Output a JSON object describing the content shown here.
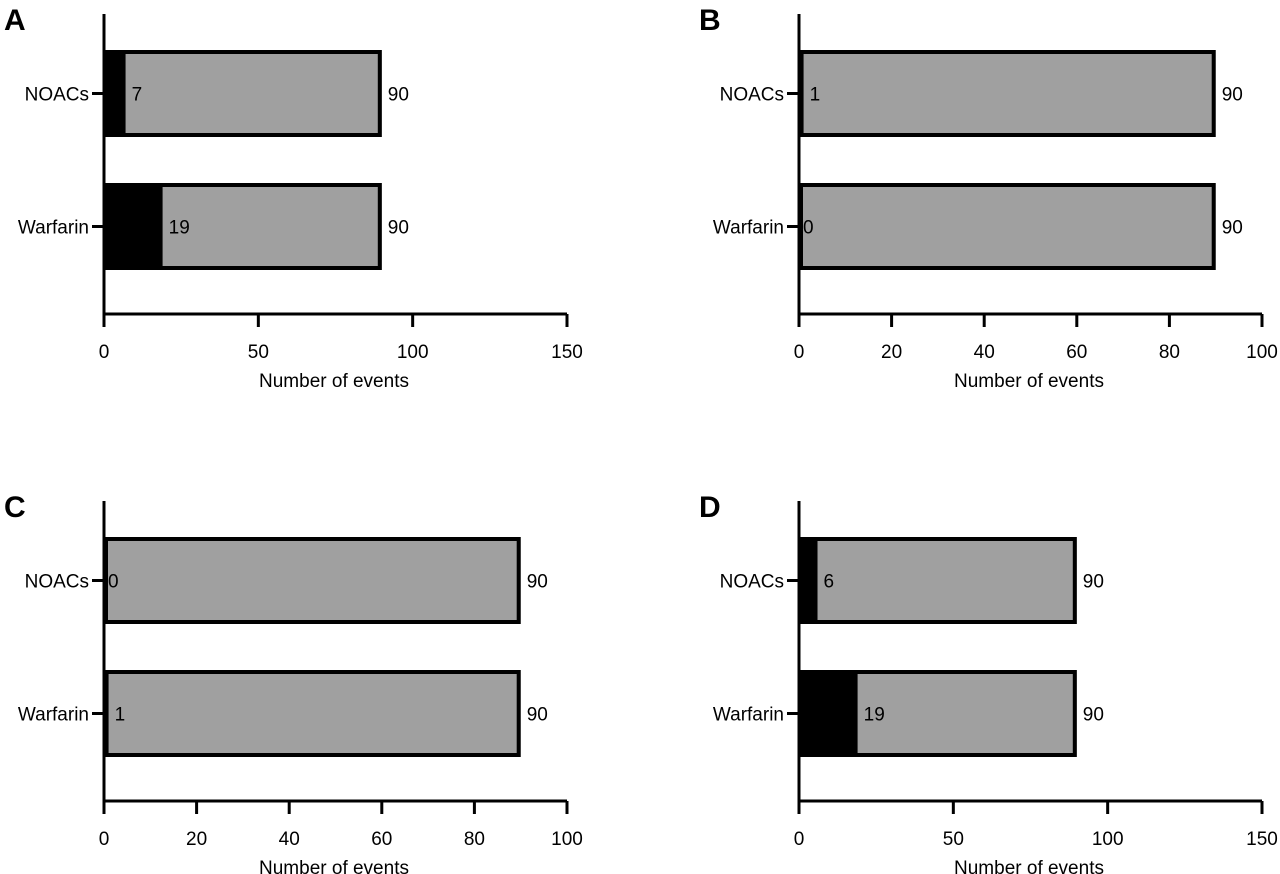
{
  "colors": {
    "events": "#000000",
    "total": "#a0a0a0",
    "outline": "#000000"
  },
  "chart_data": [
    {
      "panel": "A",
      "type": "bar",
      "orientation": "horizontal",
      "stacked": true,
      "categories": [
        "NOACs",
        "Warfarin"
      ],
      "events": [
        7,
        19
      ],
      "totals": [
        90,
        90
      ],
      "event_labels": [
        "7",
        "19"
      ],
      "total_labels": [
        "90",
        "90"
      ],
      "xlabel": "Number of events",
      "xlim": [
        0,
        150
      ],
      "xticks": [
        "0",
        "50",
        "100",
        "150"
      ],
      "grid": false
    },
    {
      "panel": "B",
      "type": "bar",
      "orientation": "horizontal",
      "stacked": true,
      "categories": [
        "NOACs",
        "Warfarin"
      ],
      "events": [
        1,
        0
      ],
      "totals": [
        90,
        90
      ],
      "event_labels": [
        "1",
        "0"
      ],
      "total_labels": [
        "90",
        "90"
      ],
      "xlabel": "Number of events",
      "xlim": [
        0,
        100
      ],
      "xticks": [
        "0",
        "20",
        "40",
        "60",
        "80",
        "100"
      ],
      "grid": false
    },
    {
      "panel": "C",
      "type": "bar",
      "orientation": "horizontal",
      "stacked": true,
      "categories": [
        "NOACs",
        "Warfarin"
      ],
      "events": [
        0,
        1
      ],
      "totals": [
        90,
        90
      ],
      "event_labels": [
        "0",
        "1"
      ],
      "total_labels": [
        "90",
        "90"
      ],
      "xlabel": "Number of events",
      "xlim": [
        0,
        100
      ],
      "xticks": [
        "0",
        "20",
        "40",
        "60",
        "80",
        "100"
      ],
      "grid": false
    },
    {
      "panel": "D",
      "type": "bar",
      "orientation": "horizontal",
      "stacked": true,
      "categories": [
        "NOACs",
        "Warfarin"
      ],
      "events": [
        6,
        19
      ],
      "totals": [
        90,
        90
      ],
      "event_labels": [
        "6",
        "19"
      ],
      "total_labels": [
        "90",
        "90"
      ],
      "xlabel": "Number of events",
      "xlim": [
        0,
        150
      ],
      "xticks": [
        "0",
        "50",
        "100",
        "150"
      ],
      "grid": false
    }
  ]
}
